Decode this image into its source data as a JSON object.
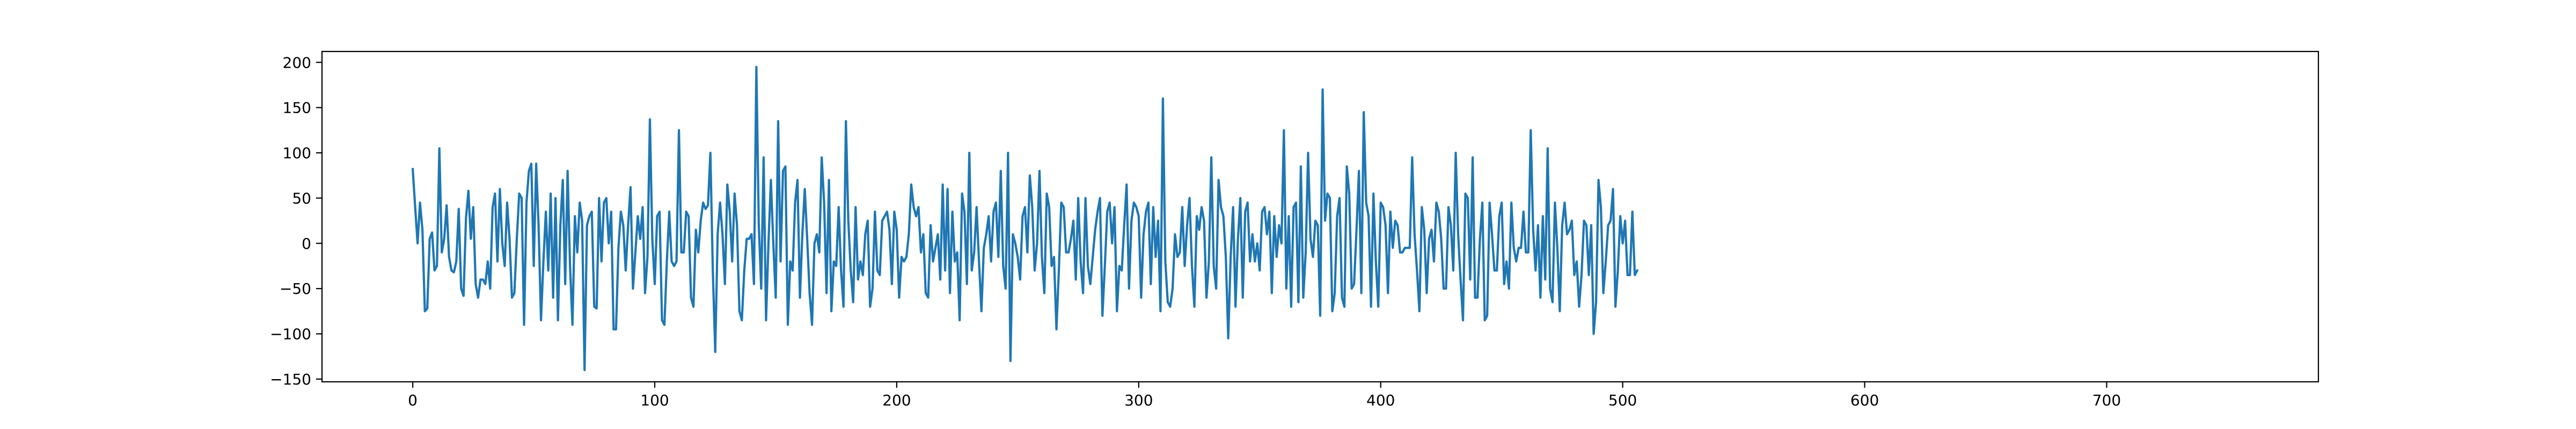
{
  "chart_data": {
    "type": "line",
    "title": "",
    "xlabel": "",
    "ylabel": "",
    "xlim": [
      -37.5,
      787.5
    ],
    "ylim": [
      -153,
      212
    ],
    "grid": false,
    "legend": "none",
    "x_ticks": [
      0,
      100,
      200,
      300,
      400,
      500,
      600,
      700
    ],
    "y_ticks": [
      -150,
      -100,
      -50,
      0,
      50,
      100,
      150,
      200
    ],
    "series": [
      {
        "color": "#1f77b4",
        "x_start": 0,
        "x_step": 1,
        "values": [
          82,
          40,
          0,
          45,
          15,
          -75,
          -72,
          5,
          12,
          -30,
          -25,
          105,
          -10,
          5,
          42,
          -15,
          -30,
          -32,
          -20,
          38,
          -50,
          -58,
          28,
          58,
          5,
          40,
          -45,
          -60,
          -40,
          -40,
          -45,
          -20,
          -50,
          40,
          55,
          -20,
          60,
          0,
          -25,
          45,
          5,
          -60,
          -55,
          5,
          55,
          50,
          -90,
          45,
          80,
          88,
          -25,
          88,
          20,
          -85,
          -20,
          35,
          -30,
          55,
          -60,
          50,
          -85,
          20,
          70,
          -45,
          80,
          -25,
          -90,
          30,
          -10,
          45,
          25,
          -140,
          20,
          30,
          35,
          -70,
          -72,
          50,
          -20,
          45,
          50,
          0,
          35,
          -95,
          -95,
          -5,
          35,
          20,
          -30,
          20,
          62,
          -50,
          -10,
          30,
          5,
          40,
          -55,
          -15,
          137,
          5,
          -45,
          30,
          35,
          -85,
          -90,
          -20,
          35,
          -20,
          -25,
          -20,
          125,
          -10,
          -10,
          35,
          30,
          -60,
          -70,
          15,
          -10,
          25,
          45,
          38,
          42,
          100,
          -30,
          -120,
          10,
          45,
          10,
          -45,
          65,
          35,
          -20,
          55,
          20,
          -75,
          -85,
          -30,
          5,
          5,
          10,
          -45,
          195,
          20,
          -50,
          95,
          -85,
          0,
          70,
          0,
          -60,
          135,
          -20,
          80,
          85,
          -90,
          -20,
          -30,
          45,
          70,
          -60,
          10,
          60,
          5,
          -55,
          -90,
          0,
          10,
          -10,
          95,
          45,
          -55,
          70,
          -75,
          -20,
          -25,
          40,
          -30,
          -70,
          135,
          25,
          -30,
          -65,
          40,
          -40,
          -20,
          -35,
          10,
          25,
          -70,
          -50,
          35,
          -30,
          -35,
          25,
          30,
          35,
          15,
          -45,
          35,
          15,
          -60,
          -15,
          -20,
          -15,
          10,
          65,
          40,
          30,
          40,
          -10,
          10,
          -55,
          -60,
          20,
          -20,
          -5,
          10,
          -40,
          65,
          -30,
          60,
          -55,
          35,
          -20,
          -10,
          -85,
          55,
          35,
          -45,
          100,
          -30,
          -10,
          40,
          -20,
          -75,
          -5,
          10,
          30,
          -20,
          35,
          45,
          -15,
          80,
          -25,
          -50,
          100,
          -130,
          10,
          0,
          -15,
          -40,
          30,
          40,
          -10,
          75,
          40,
          -30,
          0,
          80,
          -15,
          -55,
          55,
          40,
          -25,
          -15,
          -95,
          -30,
          45,
          40,
          -10,
          -10,
          5,
          25,
          -40,
          50,
          -20,
          -55,
          50,
          -25,
          -45,
          -15,
          15,
          35,
          50,
          -80,
          -25,
          35,
          45,
          0,
          40,
          -75,
          -25,
          -30,
          20,
          65,
          -50,
          25,
          45,
          40,
          30,
          -60,
          10,
          35,
          45,
          -45,
          40,
          -15,
          25,
          -75,
          160,
          -20,
          -65,
          -70,
          -50,
          10,
          -15,
          -10,
          40,
          -25,
          20,
          50,
          -25,
          -70,
          30,
          15,
          40,
          25,
          -60,
          -20,
          95,
          -25,
          -50,
          70,
          40,
          30,
          -15,
          -105,
          -15,
          40,
          -70,
          5,
          50,
          -60,
          35,
          45,
          -20,
          10,
          -20,
          0,
          -30,
          35,
          40,
          10,
          35,
          -55,
          30,
          -15,
          20,
          0,
          125,
          -50,
          30,
          -70,
          40,
          45,
          -65,
          85,
          -60,
          -10,
          100,
          5,
          -15,
          25,
          20,
          -80,
          170,
          25,
          55,
          50,
          -75,
          -55,
          30,
          50,
          -60,
          -70,
          85,
          55,
          -50,
          -45,
          15,
          80,
          -55,
          145,
          45,
          30,
          -70,
          55,
          -20,
          -70,
          45,
          40,
          20,
          -55,
          35,
          -5,
          25,
          20,
          -10,
          -10,
          -5,
          -5,
          -5,
          95,
          10,
          -30,
          -75,
          40,
          15,
          -55,
          5,
          15,
          -20,
          45,
          35,
          5,
          -50,
          -50,
          40,
          20,
          -30,
          100,
          10,
          -40,
          -85,
          55,
          50,
          -40,
          95,
          -60,
          -60,
          5,
          45,
          -85,
          -80,
          45,
          10,
          -30,
          -30,
          30,
          45,
          -45,
          -20,
          -50,
          45,
          -5,
          -20,
          -5,
          -5,
          35,
          -10,
          -10,
          125,
          15,
          -30,
          20,
          -60,
          30,
          -40,
          105,
          -50,
          -65,
          45,
          -5,
          -75,
          20,
          45,
          10,
          15,
          25,
          -35,
          -20,
          -70,
          -35,
          25,
          20,
          -35,
          20,
          -100,
          -65,
          70,
          40,
          -55,
          -20,
          20,
          25,
          60,
          -70,
          -30,
          30,
          0,
          25,
          -35,
          -35,
          35,
          -35,
          -30
        ]
      }
    ]
  }
}
